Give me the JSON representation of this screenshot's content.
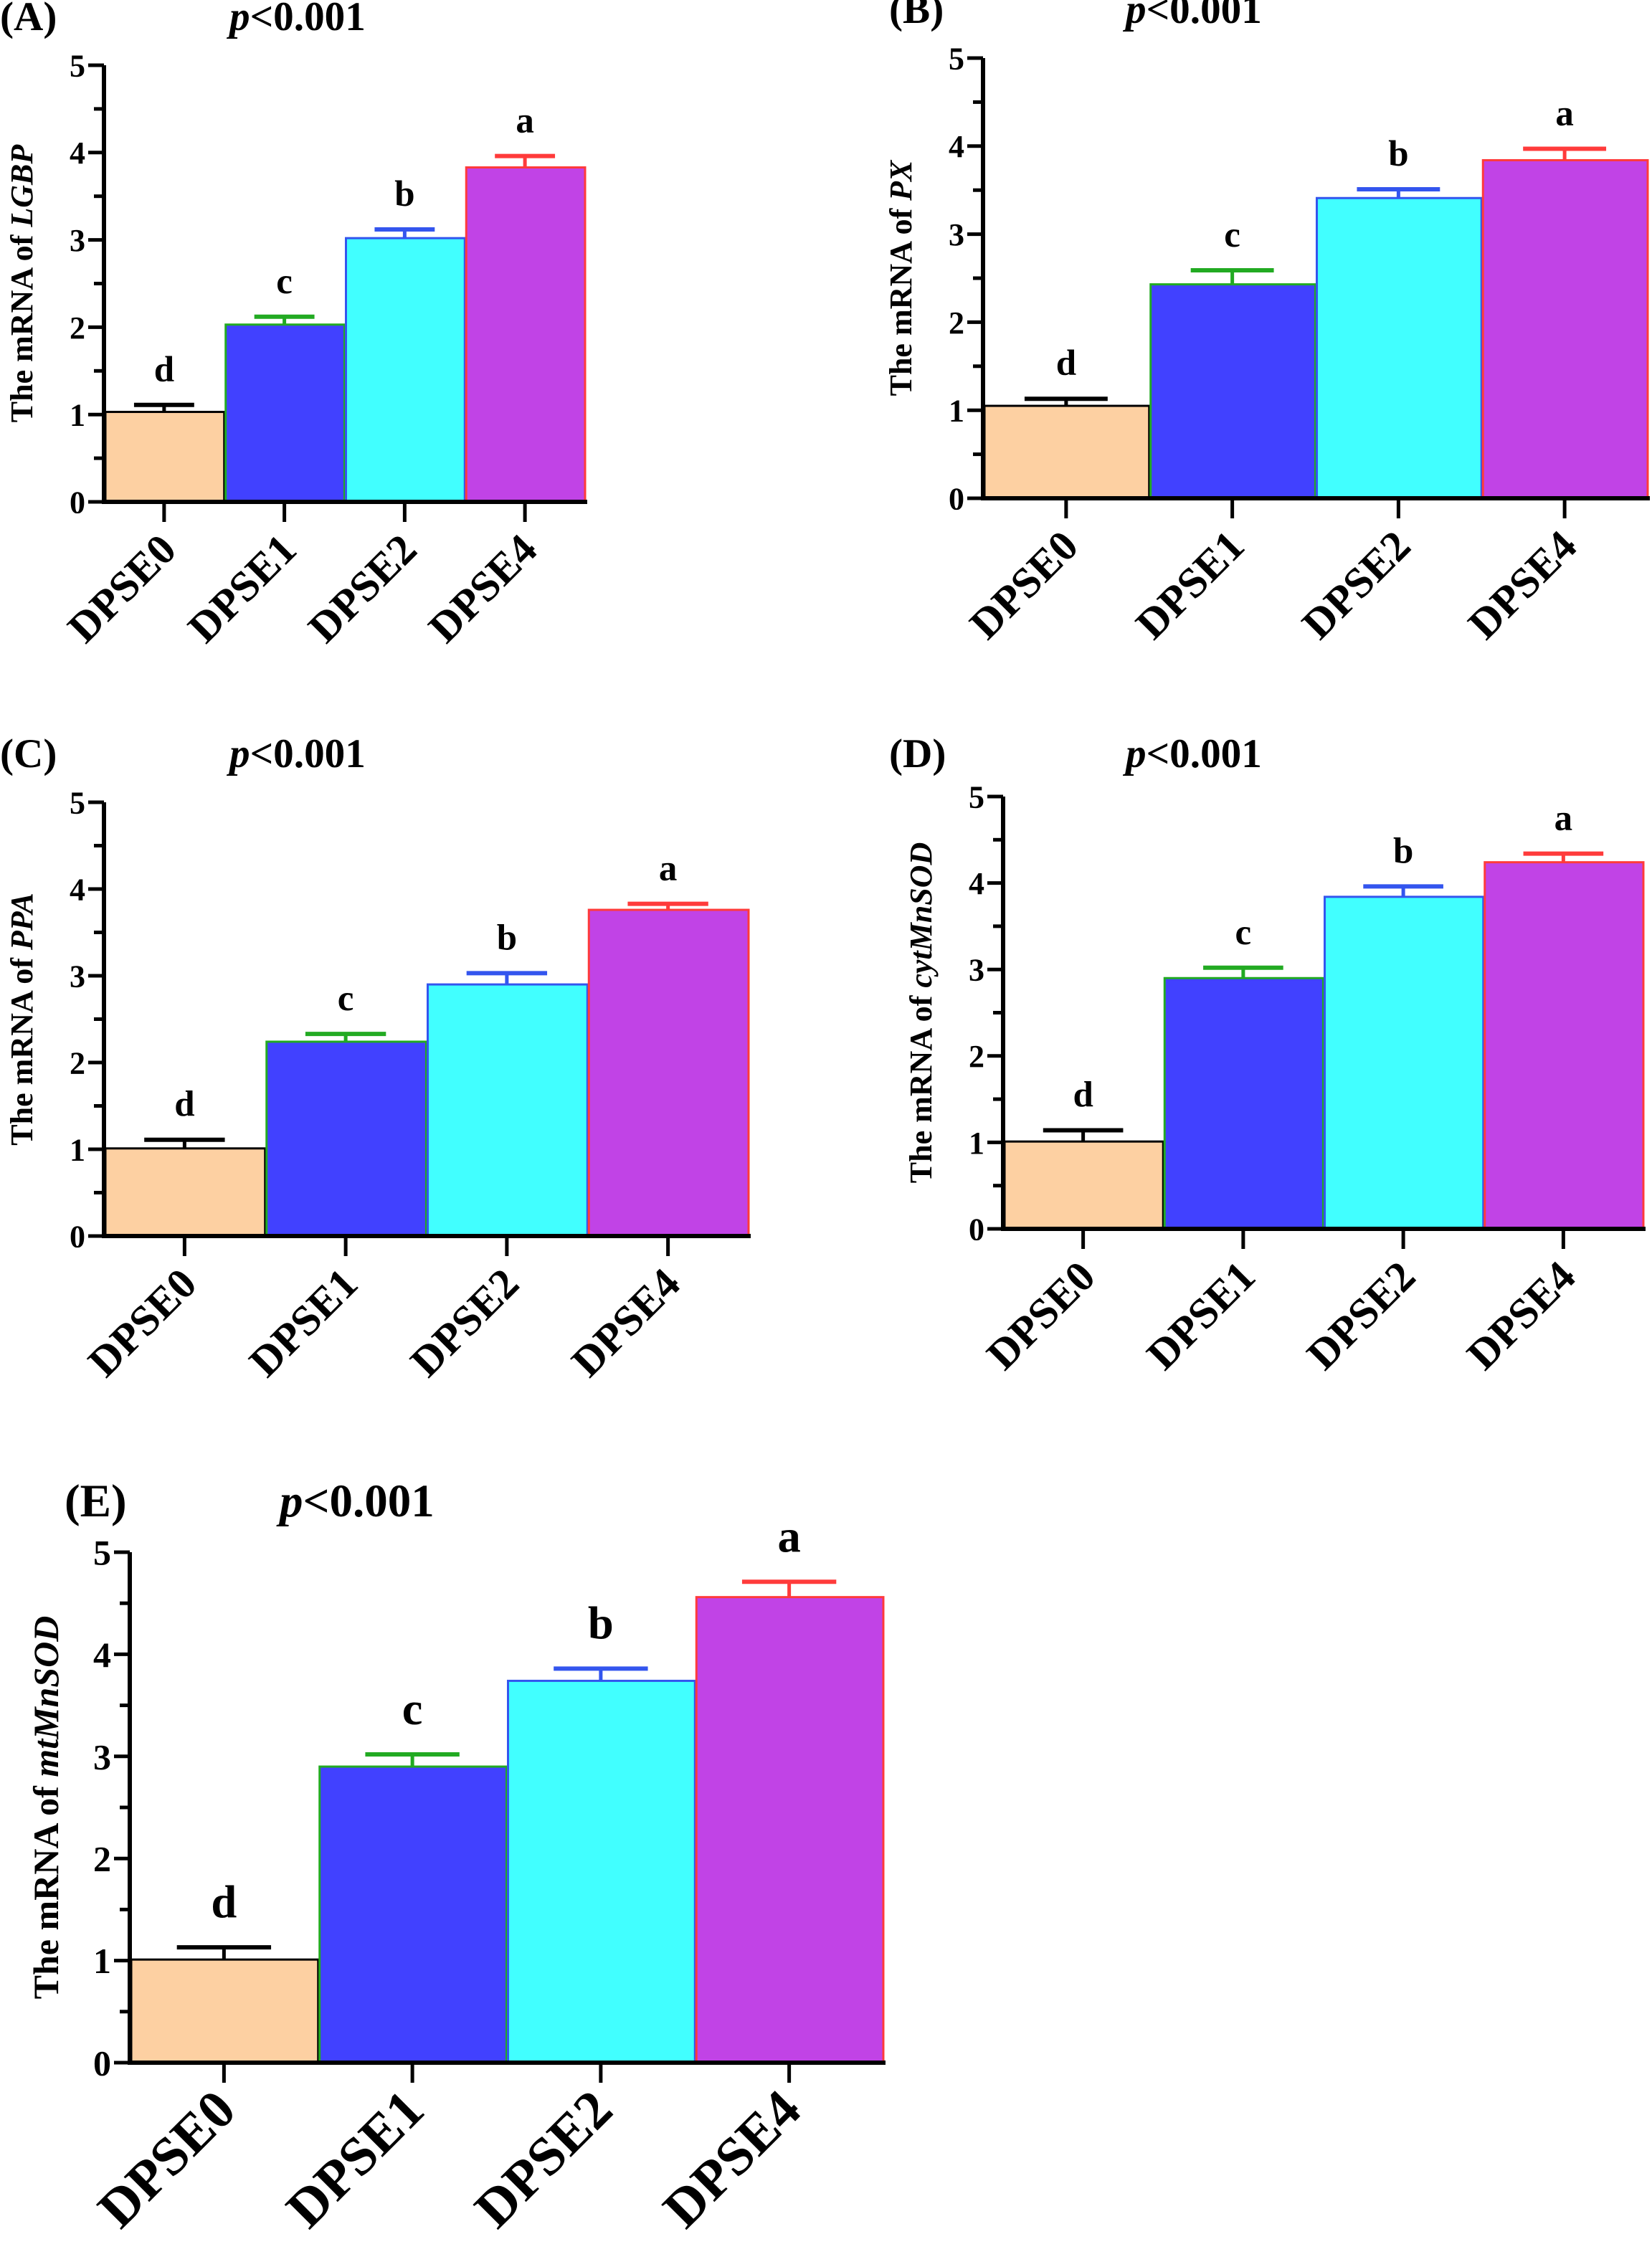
{
  "chart_data": [
    {
      "type": "bar",
      "panel": "(A)",
      "title": "p<0.001",
      "title_p": "p",
      "title_rest": "<0.001",
      "ylabel_prefix": "The mRNA of ",
      "gene": "LGBP",
      "categories": [
        "DPSE0",
        "DPSE1",
        "DPSE2",
        "DPSE4"
      ],
      "values": [
        1.03,
        2.03,
        3.02,
        3.83
      ],
      "errors": [
        0.08,
        0.09,
        0.1,
        0.13
      ],
      "letters": [
        "d",
        "c",
        "b",
        "a"
      ],
      "ylim": [
        0,
        5
      ],
      "yticks": [
        "0",
        "1",
        "2",
        "3",
        "4",
        "5"
      ]
    },
    {
      "type": "bar",
      "panel": "(B)",
      "title": "p<0.001",
      "title_p": "p",
      "title_rest": "<0.001",
      "ylabel_prefix": "The mRNA of ",
      "gene": "PX",
      "categories": [
        "DPSE0",
        "DPSE1",
        "DPSE2",
        "DPSE4"
      ],
      "values": [
        1.05,
        2.43,
        3.41,
        3.84
      ],
      "errors": [
        0.08,
        0.16,
        0.1,
        0.13
      ],
      "letters": [
        "d",
        "c",
        "b",
        "a"
      ],
      "ylim": [
        0,
        5
      ],
      "yticks": [
        "0",
        "1",
        "2",
        "3",
        "4",
        "5"
      ]
    },
    {
      "type": "bar",
      "panel": "(C)",
      "title": "p<0.001",
      "title_p": "p",
      "title_rest": "<0.001",
      "ylabel_prefix": "The mRNA of ",
      "gene": "PPA",
      "categories": [
        "DPSE0",
        "DPSE1",
        "DPSE2",
        "DPSE4"
      ],
      "values": [
        1.01,
        2.24,
        2.9,
        3.76
      ],
      "errors": [
        0.1,
        0.09,
        0.13,
        0.07
      ],
      "letters": [
        "d",
        "c",
        "b",
        "a"
      ],
      "ylim": [
        0,
        5
      ],
      "yticks": [
        "0",
        "1",
        "2",
        "3",
        "4",
        "5"
      ]
    },
    {
      "type": "bar",
      "panel": "(D)",
      "title": "p<0.001",
      "title_p": "p",
      "title_rest": "<0.001",
      "ylabel_prefix": "The mRNA of ",
      "gene": "cytMnSOD",
      "categories": [
        "DPSE0",
        "DPSE1",
        "DPSE2",
        "DPSE4"
      ],
      "values": [
        1.01,
        2.9,
        3.84,
        4.24
      ],
      "errors": [
        0.13,
        0.12,
        0.12,
        0.1
      ],
      "letters": [
        "d",
        "c",
        "b",
        "a"
      ],
      "ylim": [
        0,
        5
      ],
      "yticks": [
        "0",
        "1",
        "2",
        "3",
        "4",
        "5"
      ]
    },
    {
      "type": "bar",
      "panel": "(E)",
      "title": "p<0.001",
      "title_p": "p",
      "title_rest": "<0.001",
      "ylabel_prefix": "The mRNA of ",
      "gene": "mtMnSOD",
      "categories": [
        "DPSE0",
        "DPSE1",
        "DPSE2",
        "DPSE4"
      ],
      "values": [
        1.01,
        2.9,
        3.74,
        4.56
      ],
      "errors": [
        0.12,
        0.12,
        0.12,
        0.15
      ],
      "letters": [
        "d",
        "c",
        "b",
        "a"
      ],
      "ylim": [
        0,
        5
      ],
      "yticks": [
        "0",
        "1",
        "2",
        "3",
        "4",
        "5"
      ]
    }
  ],
  "colors": {
    "fills": [
      "#fdd0a2",
      "#4141ff",
      "#41ffff",
      "#c143e6"
    ],
    "edges": [
      "#000000",
      "#22aa22",
      "#3355ee",
      "#ff3b3b"
    ]
  }
}
